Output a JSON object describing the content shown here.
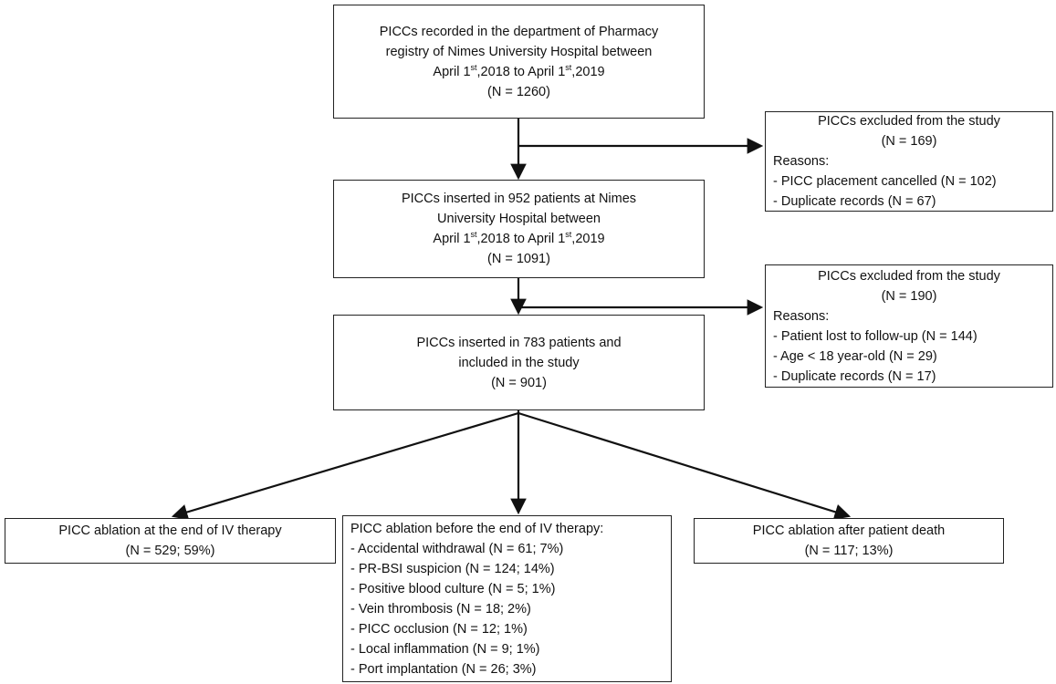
{
  "main_boxes": [
    {
      "lines": [
        "PICCs recorded in the department of Pharmacy",
        "registry of Nimes University Hospital between",
        [
          "April 1",
          "st",
          ",2018 to April 1",
          "st",
          ",2019"
        ],
        "(N = 1260)"
      ]
    },
    {
      "lines": [
        "PICCs inserted in 952 patients at Nimes",
        "University Hospital between",
        [
          "April 1",
          "st",
          ",2018 to April 1",
          "st",
          ",2019"
        ],
        "(N = 1091)"
      ]
    },
    {
      "lines": [
        "PICCs inserted in 783 patients and",
        "included in the study",
        "(N = 901)"
      ]
    }
  ],
  "exclusion_boxes": [
    {
      "title": [
        "PICCs excluded from the study",
        "(N = 169)"
      ],
      "items": [
        "Reasons:",
        "- PICC placement cancelled (N = 102)",
        "- Duplicate records (N = 67)"
      ]
    },
    {
      "title": [
        "PICCs excluded from the study",
        "(N = 190)"
      ],
      "items": [
        "Reasons:",
        "- Patient lost to follow-up (N = 144)",
        "- Age < 18 year-old (N = 29)",
        "- Duplicate records (N = 17)"
      ]
    }
  ],
  "outcome_boxes": [
    {
      "title": [
        "PICC ablation at the end of IV therapy",
        "(N = 529; 59%)"
      ]
    },
    {
      "items": [
        "PICC ablation before the end of IV therapy:",
        "- Accidental withdrawal (N = 61; 7%)",
        "- PR-BSI suspicion (N = 124; 14%)",
        "- Positive blood culture (N = 5; 1%)",
        "- Vein thrombosis (N = 18; 2%)",
        "- PICC occlusion (N = 12; 1%)",
        "- Local inflammation (N = 9; 1%)",
        "- Port implantation (N = 26; 3%)"
      ]
    },
    {
      "title": [
        "PICC ablation after patient death",
        "(N = 117; 13%)"
      ]
    }
  ]
}
